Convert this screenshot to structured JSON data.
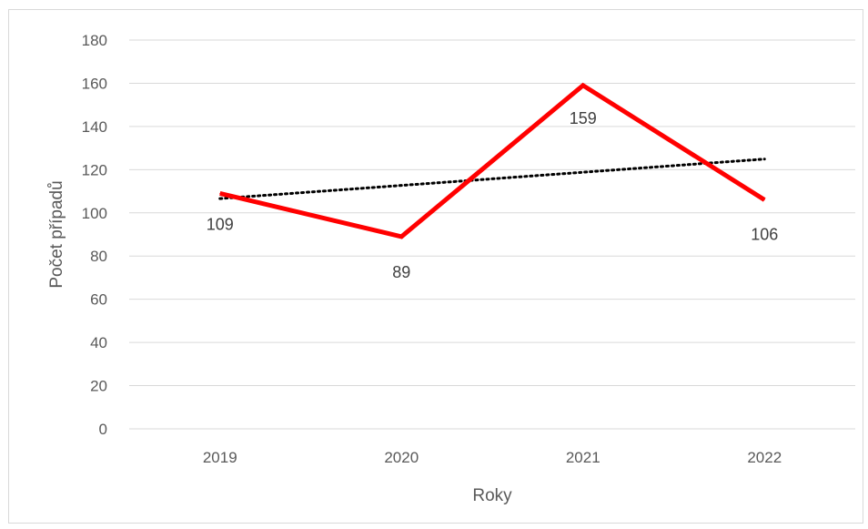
{
  "chart_data": {
    "type": "line",
    "categories": [
      "2019",
      "2020",
      "2021",
      "2022"
    ],
    "series": [
      {
        "values": [
          109,
          89,
          159,
          106
        ],
        "color": "#ff0000",
        "data_labels": [
          "109",
          "89",
          "159",
          "106"
        ]
      }
    ],
    "trendline": {
      "type": "linear",
      "style": "dotted",
      "color": "#000000"
    },
    "xlabel": "Roky",
    "ylabel": "Počet případů",
    "ylim": [
      0,
      180
    ],
    "yticks": [
      "0",
      "20",
      "40",
      "60",
      "80",
      "100",
      "120",
      "140",
      "160",
      "180"
    ],
    "grid": true,
    "legend": "none"
  }
}
